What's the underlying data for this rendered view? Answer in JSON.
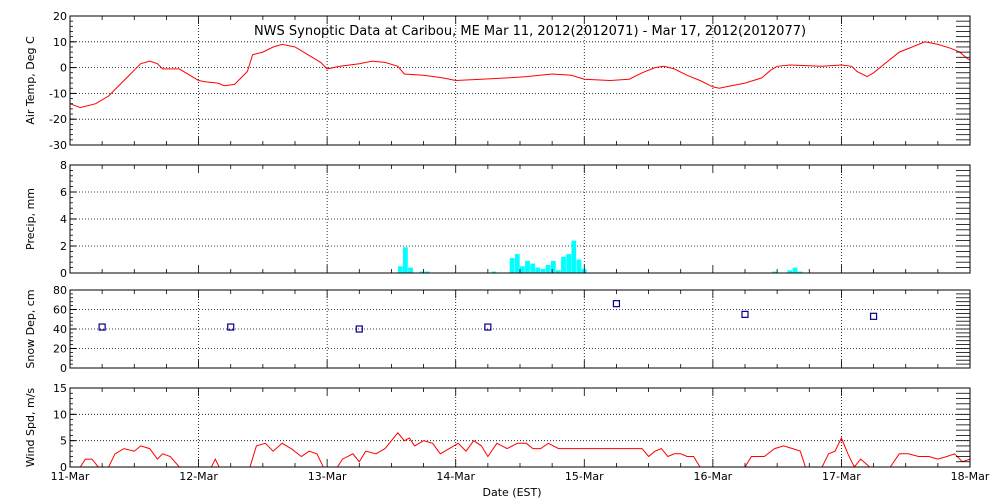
{
  "title": "NWS Synoptic Data at Caribou, ME   Mar 11, 2012(2012071) - Mar 17, 2012(2012077)",
  "xlabel": "Date (EST)",
  "x_ticks": [
    "11-Mar",
    "12-Mar",
    "13-Mar",
    "14-Mar",
    "15-Mar",
    "16-Mar",
    "17-Mar",
    "18-Mar"
  ],
  "colors": {
    "temp": "#ff0000",
    "precip": "#00ffff",
    "snow": "#00008b",
    "wind": "#ff0000",
    "axis": "#000000"
  },
  "chart_data": [
    {
      "type": "line",
      "name": "air_temp",
      "ylabel": "Air Temp, Deg C",
      "ylim": [
        -30,
        20
      ],
      "yticks": [
        20,
        10,
        0,
        -10,
        -20,
        -30
      ],
      "x_unit": "day",
      "x_range": [
        0,
        7
      ],
      "x_grid": [
        1,
        2,
        3,
        4,
        5,
        6
      ],
      "points": [
        [
          0.0,
          -14
        ],
        [
          0.08,
          -15.5
        ],
        [
          0.2,
          -14
        ],
        [
          0.3,
          -11
        ],
        [
          0.4,
          -6
        ],
        [
          0.5,
          -1
        ],
        [
          0.55,
          1.5
        ],
        [
          0.62,
          2.5
        ],
        [
          0.68,
          1.5
        ],
        [
          0.72,
          -0.5
        ],
        [
          0.85,
          -0.5
        ],
        [
          1.0,
          -5
        ],
        [
          1.05,
          -5.5
        ],
        [
          1.15,
          -6
        ],
        [
          1.2,
          -7
        ],
        [
          1.28,
          -6.5
        ],
        [
          1.38,
          -1.5
        ],
        [
          1.42,
          5
        ],
        [
          1.5,
          6
        ],
        [
          1.58,
          8
        ],
        [
          1.65,
          9
        ],
        [
          1.75,
          8
        ],
        [
          1.85,
          5
        ],
        [
          1.95,
          2
        ],
        [
          2.0,
          -0.5
        ],
        [
          2.1,
          0.5
        ],
        [
          2.25,
          1.5
        ],
        [
          2.35,
          2.5
        ],
        [
          2.45,
          2
        ],
        [
          2.55,
          0.5
        ],
        [
          2.6,
          -2.5
        ],
        [
          2.75,
          -3
        ],
        [
          2.9,
          -4
        ],
        [
          3.0,
          -5
        ],
        [
          3.2,
          -4.5
        ],
        [
          3.4,
          -4
        ],
        [
          3.55,
          -3.5
        ],
        [
          3.75,
          -2.5
        ],
        [
          3.9,
          -3
        ],
        [
          4.0,
          -4.5
        ],
        [
          4.2,
          -5
        ],
        [
          4.35,
          -4.5
        ],
        [
          4.45,
          -2
        ],
        [
          4.55,
          0
        ],
        [
          4.62,
          0.5
        ],
        [
          4.7,
          -0.5
        ],
        [
          4.8,
          -3
        ],
        [
          4.9,
          -5
        ],
        [
          5.0,
          -7.5
        ],
        [
          5.05,
          -8
        ],
        [
          5.1,
          -7.5
        ],
        [
          5.25,
          -6
        ],
        [
          5.38,
          -4
        ],
        [
          5.45,
          -1
        ],
        [
          5.5,
          0.5
        ],
        [
          5.6,
          1
        ],
        [
          5.85,
          0.5
        ],
        [
          6.0,
          1
        ],
        [
          6.08,
          0.5
        ],
        [
          6.12,
          -1.5
        ],
        [
          6.2,
          -3.5
        ],
        [
          6.25,
          -2
        ],
        [
          6.35,
          2
        ],
        [
          6.45,
          6
        ],
        [
          6.55,
          8
        ],
        [
          6.65,
          10
        ],
        [
          6.75,
          9
        ],
        [
          6.85,
          7.5
        ],
        [
          6.92,
          6
        ],
        [
          6.98,
          3.5
        ],
        [
          7.0,
          3
        ]
      ]
    },
    {
      "type": "bar",
      "name": "precip",
      "ylabel": "Precip, mm",
      "ylim": [
        0,
        8
      ],
      "yticks": [
        8,
        6,
        4,
        2,
        0
      ],
      "x_unit": "day",
      "x_range": [
        0,
        7
      ],
      "x_grid": [
        2,
        4,
        6
      ],
      "bin_width": 0.04,
      "bars": [
        [
          2.55,
          0.5
        ],
        [
          2.59,
          1.9
        ],
        [
          2.63,
          0.4
        ],
        [
          2.72,
          0.1
        ],
        [
          2.76,
          0.1
        ],
        [
          3.28,
          0.1
        ],
        [
          3.42,
          1.1
        ],
        [
          3.46,
          1.4
        ],
        [
          3.5,
          0.5
        ],
        [
          3.54,
          0.9
        ],
        [
          3.58,
          0.7
        ],
        [
          3.62,
          0.4
        ],
        [
          3.66,
          0.3
        ],
        [
          3.7,
          0.6
        ],
        [
          3.74,
          0.9
        ],
        [
          3.78,
          0.2
        ],
        [
          3.82,
          1.2
        ],
        [
          3.86,
          1.4
        ],
        [
          3.9,
          2.4
        ],
        [
          3.94,
          1.0
        ],
        [
          3.98,
          0.3
        ],
        [
          5.46,
          0.1
        ],
        [
          5.58,
          0.2
        ],
        [
          5.62,
          0.4
        ],
        [
          5.66,
          0.1
        ]
      ]
    },
    {
      "type": "scatter",
      "name": "snow_depth",
      "ylabel": "Snow Dep, cm",
      "ylim": [
        0,
        80
      ],
      "yticks": [
        80,
        60,
        40,
        20,
        0
      ],
      "x_unit": "day",
      "x_range": [
        0,
        7
      ],
      "x_grid": [
        1,
        2,
        3,
        4,
        5,
        6
      ],
      "points": [
        [
          0.25,
          42
        ],
        [
          1.25,
          42
        ],
        [
          2.25,
          40
        ],
        [
          3.25,
          42
        ],
        [
          4.25,
          66
        ],
        [
          5.25,
          55
        ],
        [
          6.25,
          53
        ]
      ]
    },
    {
      "type": "line",
      "name": "wind_speed",
      "ylabel": "Wind Spd, m/s",
      "ylim": [
        0,
        15
      ],
      "yticks": [
        15,
        10,
        5,
        0
      ],
      "x_unit": "day",
      "x_range": [
        0,
        7
      ],
      "x_grid": [
        1,
        3,
        5,
        6
      ],
      "points": [
        [
          0.0,
          0
        ],
        [
          0.08,
          0
        ],
        [
          0.12,
          1.5
        ],
        [
          0.17,
          1.5
        ],
        [
          0.22,
          0
        ],
        [
          0.3,
          0
        ],
        [
          0.35,
          2.5
        ],
        [
          0.42,
          3.5
        ],
        [
          0.5,
          3
        ],
        [
          0.55,
          4
        ],
        [
          0.62,
          3.5
        ],
        [
          0.68,
          1.5
        ],
        [
          0.72,
          2.5
        ],
        [
          0.78,
          2
        ],
        [
          0.85,
          0
        ],
        [
          1.1,
          0
        ],
        [
          1.13,
          1.5
        ],
        [
          1.16,
          0
        ],
        [
          1.4,
          0
        ],
        [
          1.45,
          4
        ],
        [
          1.52,
          4.5
        ],
        [
          1.58,
          3
        ],
        [
          1.65,
          4.5
        ],
        [
          1.72,
          3.5
        ],
        [
          1.8,
          2
        ],
        [
          1.86,
          3
        ],
        [
          1.92,
          2.5
        ],
        [
          1.97,
          0
        ],
        [
          2.08,
          0
        ],
        [
          2.12,
          1.5
        ],
        [
          2.2,
          2.5
        ],
        [
          2.25,
          1
        ],
        [
          2.3,
          3
        ],
        [
          2.38,
          2.5
        ],
        [
          2.45,
          3.5
        ],
        [
          2.5,
          5
        ],
        [
          2.55,
          6.5
        ],
        [
          2.6,
          5
        ],
        [
          2.64,
          5.5
        ],
        [
          2.68,
          4
        ],
        [
          2.75,
          5
        ],
        [
          2.82,
          4.5
        ],
        [
          2.88,
          2.5
        ],
        [
          2.95,
          3.5
        ],
        [
          3.02,
          4.5
        ],
        [
          3.08,
          3
        ],
        [
          3.14,
          5
        ],
        [
          3.2,
          4
        ],
        [
          3.25,
          2
        ],
        [
          3.32,
          4.5
        ],
        [
          3.4,
          3.5
        ],
        [
          3.48,
          4.5
        ],
        [
          3.55,
          4.5
        ],
        [
          3.6,
          3.5
        ],
        [
          3.66,
          3.5
        ],
        [
          3.72,
          4.5
        ],
        [
          3.8,
          3.5
        ],
        [
          3.9,
          3.5
        ],
        [
          4.1,
          3.5
        ],
        [
          4.35,
          3.5
        ],
        [
          4.45,
          3.5
        ],
        [
          4.5,
          2
        ],
        [
          4.55,
          3
        ],
        [
          4.6,
          3.5
        ],
        [
          4.65,
          2
        ],
        [
          4.7,
          2.5
        ],
        [
          4.75,
          2.5
        ],
        [
          4.8,
          2
        ],
        [
          4.85,
          2
        ],
        [
          4.9,
          0
        ],
        [
          5.25,
          0
        ],
        [
          5.3,
          2
        ],
        [
          5.4,
          2
        ],
        [
          5.48,
          3.5
        ],
        [
          5.55,
          4
        ],
        [
          5.62,
          3.5
        ],
        [
          5.68,
          3
        ],
        [
          5.72,
          0
        ],
        [
          5.85,
          0
        ],
        [
          5.9,
          2.5
        ],
        [
          5.95,
          3
        ],
        [
          6.0,
          5.5
        ],
        [
          6.05,
          2.5
        ],
        [
          6.1,
          0
        ],
        [
          6.15,
          1.5
        ],
        [
          6.22,
          0
        ],
        [
          6.38,
          0
        ],
        [
          6.45,
          2.5
        ],
        [
          6.52,
          2.5
        ],
        [
          6.6,
          2
        ],
        [
          6.68,
          2
        ],
        [
          6.75,
          1.5
        ],
        [
          6.82,
          2
        ],
        [
          6.88,
          2.5
        ],
        [
          6.94,
          1
        ],
        [
          7.0,
          1.5
        ]
      ]
    }
  ]
}
